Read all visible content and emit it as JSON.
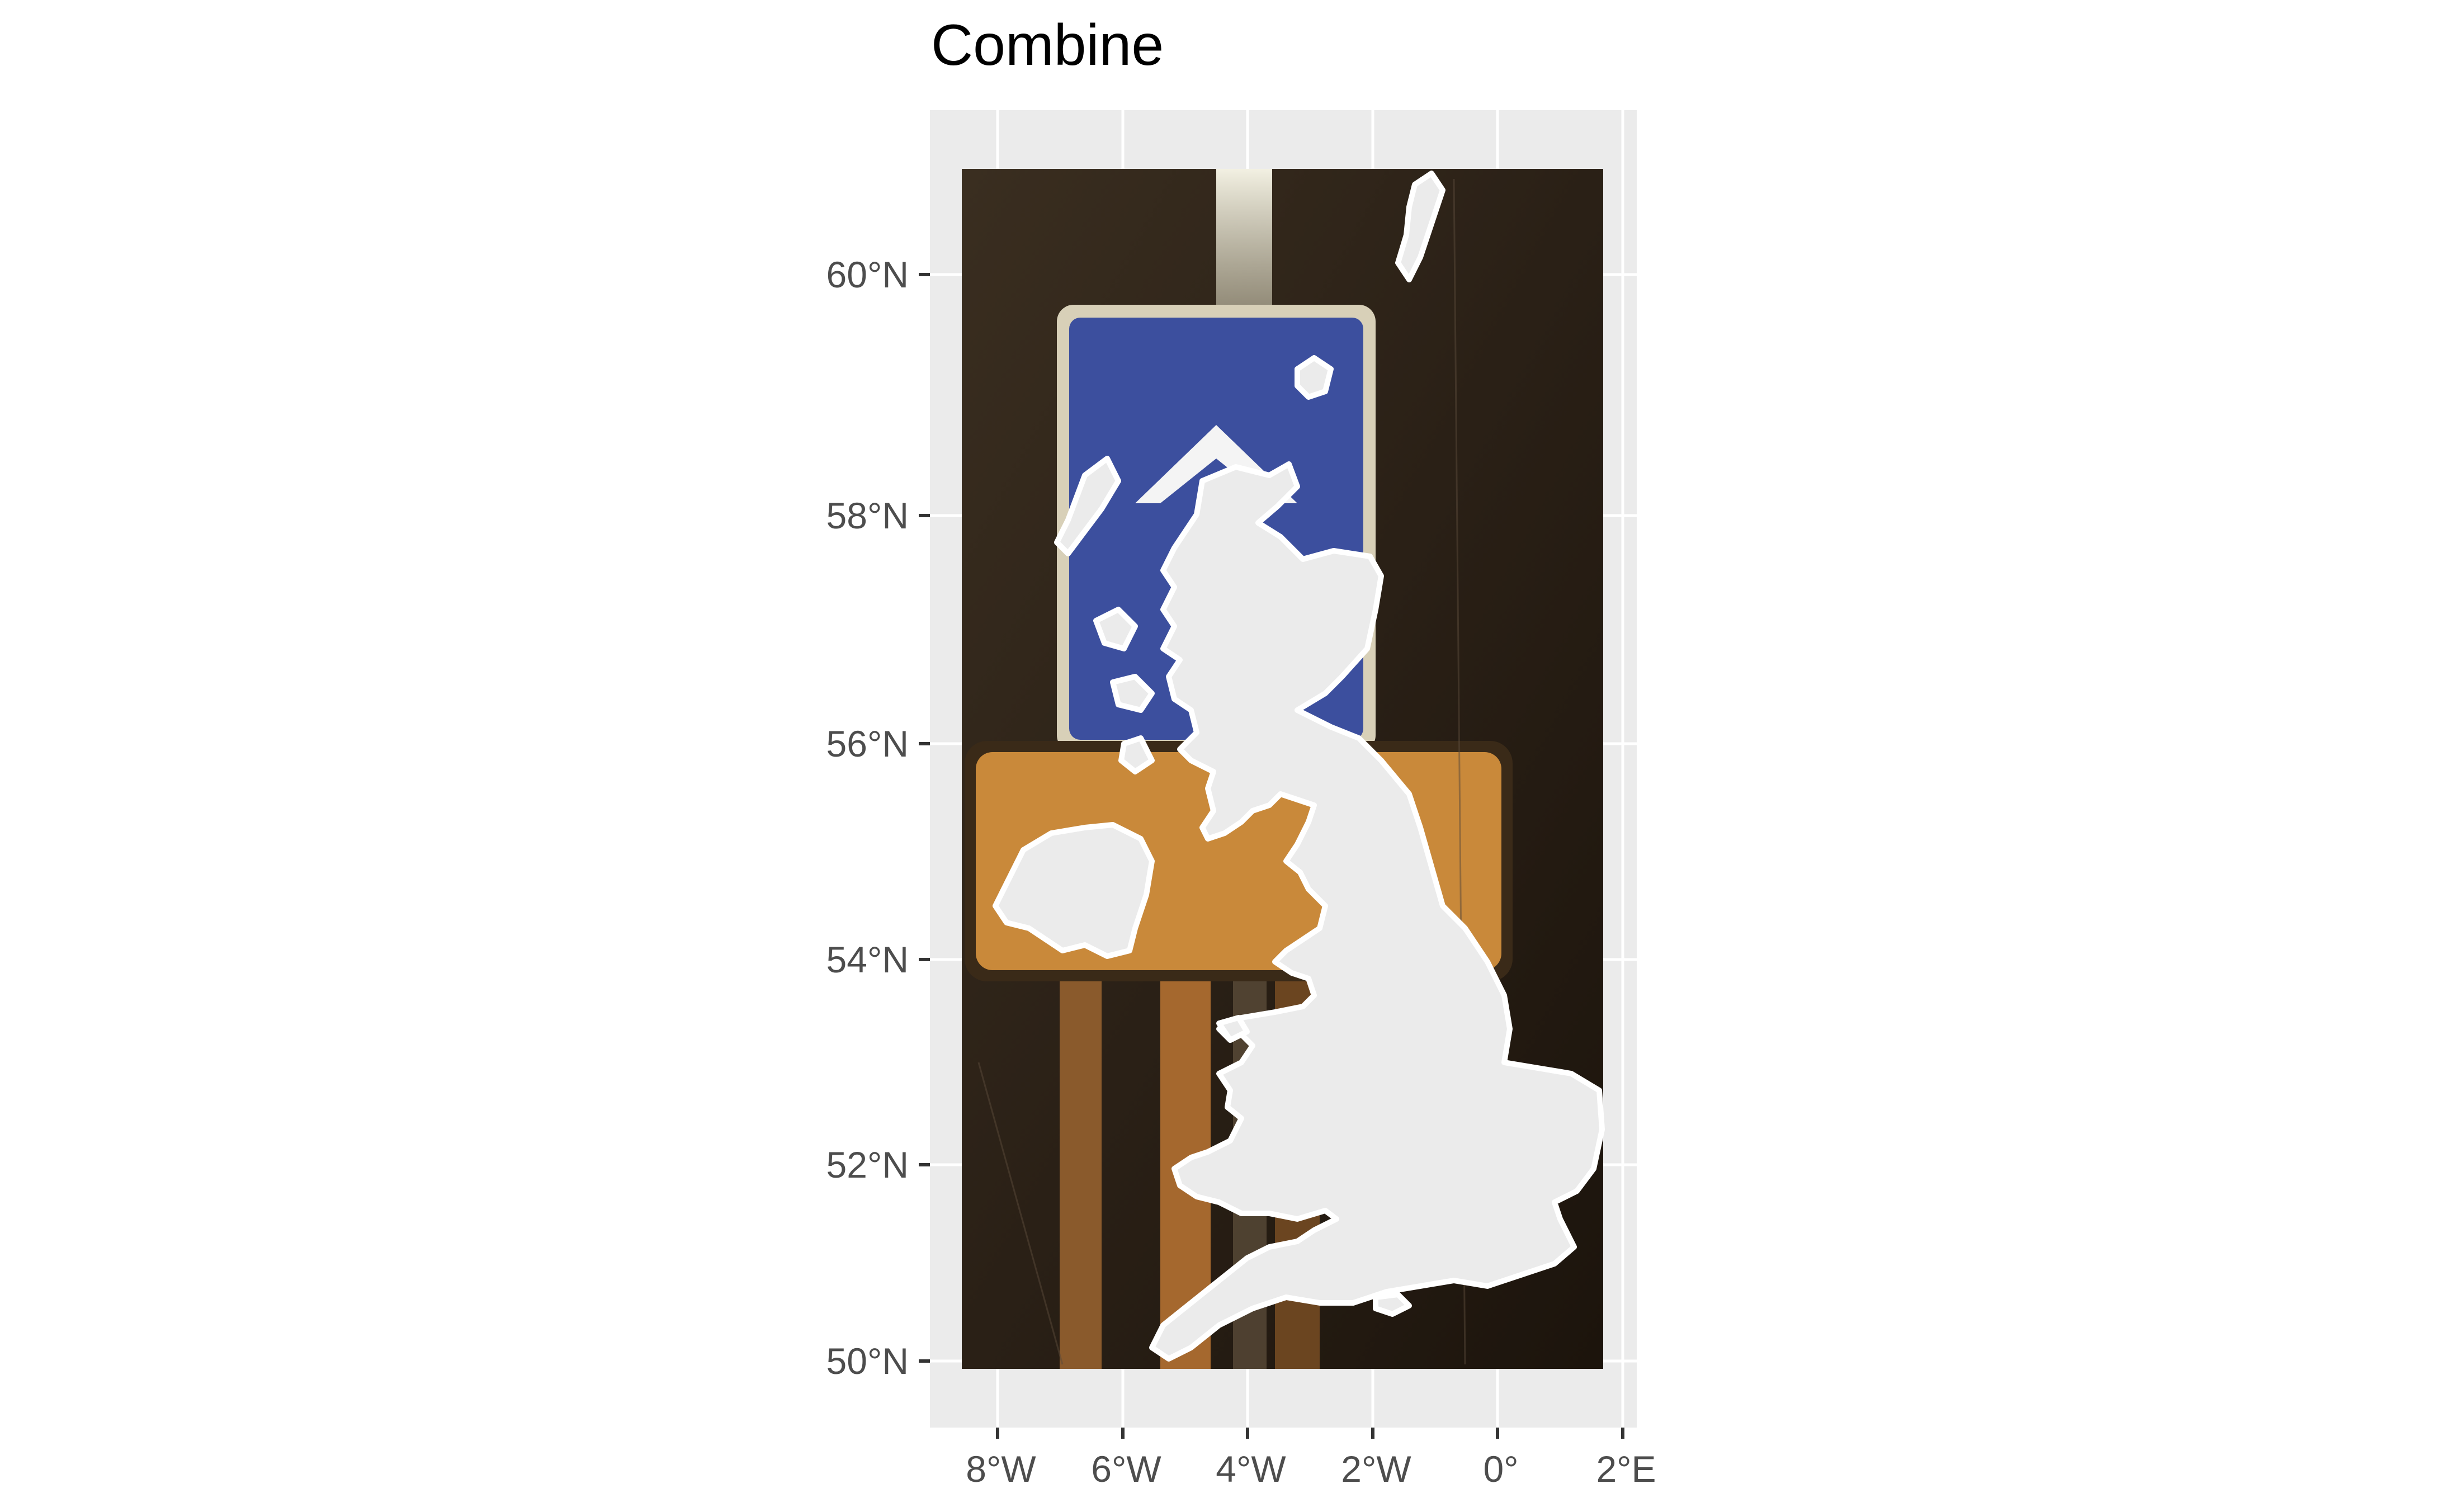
{
  "title": "Combine",
  "axes": {
    "y_ticks": [
      {
        "label": "60°N",
        "value": 60
      },
      {
        "label": "58°N",
        "value": 58
      },
      {
        "label": "56°N",
        "value": 56
      },
      {
        "label": "54°N",
        "value": 54
      },
      {
        "label": "52°N",
        "value": 52
      },
      {
        "label": "50°N",
        "value": 50
      }
    ],
    "x_ticks": [
      {
        "label": "8°W",
        "value": -8
      },
      {
        "label": "6°W",
        "value": -6
      },
      {
        "label": "4°W",
        "value": -4
      },
      {
        "label": "2°W",
        "value": -2
      },
      {
        "label": "0°",
        "value": 0
      },
      {
        "label": "2°E",
        "value": 2
      }
    ],
    "lon_range": [
      -9,
      2
    ],
    "lat_range": [
      49.7,
      61
    ]
  },
  "map": {
    "region": "United Kingdom",
    "fill_color": "#ebebeb",
    "border_color": "#ffffff",
    "panel_background": "#ebebeb",
    "grid_color": "#ffffff",
    "background_photo": "night street scene with blue road sign and orange sign",
    "photo_colors": {
      "dark": "#2a2016",
      "blue_sign": "#3c4f9e",
      "orange_sign": "#c9893a",
      "light_beam": "#e9e6d8"
    }
  }
}
